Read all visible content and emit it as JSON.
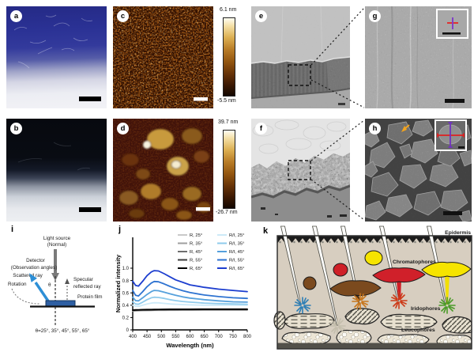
{
  "panel_labels": {
    "a": "a",
    "b": "b",
    "c": "c",
    "d": "d",
    "e": "e",
    "f": "f",
    "g": "g",
    "h": "h",
    "i": "i",
    "j": "j",
    "k": "k"
  },
  "colorbar_c": {
    "max_label": "6.1 nm",
    "min_label": "-5.5 nm"
  },
  "colorbar_d": {
    "max_label": "39.7 nm",
    "min_label": "-26.7 nm"
  },
  "diagram_i": {
    "light_source_line1": "Light source",
    "light_source_line2": "(Normal)",
    "detector_line1": "Detector",
    "detector_line2": "(Observation angles)",
    "scattered_ray": "Scattered ray",
    "rotation": "Rotation",
    "theta": "θ",
    "specular_line1": "Specular",
    "specular_line2": "reflected ray",
    "protein_film": "Protein film",
    "angles": "θ=25°, 35°, 45°, 55°, 65°"
  },
  "illustration_k": {
    "epidermis_label": "Epidermis",
    "chromatophores_label": "Chromatophores",
    "iridophores_label": "Iridophores",
    "leucophores_label": "Leucophores"
  },
  "colors": {
    "diagram_arrow_blue": "#2d8fd6",
    "protein_film_blue": "#2e5fa3",
    "afm_high": "#fffdf2",
    "afm_low": "#120700"
  },
  "chart_data": {
    "type": "line",
    "title": "",
    "xlabel": "Wavelength (nm)",
    "ylabel": "Normalized intensity",
    "xlim": [
      400,
      800
    ],
    "ylim": [
      0,
      1.5
    ],
    "xticks": [
      400,
      450,
      500,
      550,
      600,
      650,
      700,
      750,
      800
    ],
    "yticks": [
      0,
      0.2,
      0.4,
      0.6,
      0.8,
      1.0
    ],
    "legend_position": "top-inside",
    "legend_columns": 2,
    "x": [
      400,
      410,
      420,
      435,
      450,
      465,
      475,
      490,
      510,
      530,
      550,
      575,
      600,
      650,
      700,
      750,
      800
    ],
    "series": [
      {
        "name": "R, 25°",
        "color": "#c9c9c9",
        "values": [
          0.305,
          0.308,
          0.31,
          0.312,
          0.313,
          0.314,
          0.315,
          0.316,
          0.317,
          0.318,
          0.318,
          0.319,
          0.319,
          0.32,
          0.32,
          0.32,
          0.32
        ]
      },
      {
        "name": "R, 35°",
        "color": "#9f9f9f",
        "values": [
          0.309,
          0.312,
          0.314,
          0.316,
          0.317,
          0.318,
          0.319,
          0.32,
          0.321,
          0.322,
          0.322,
          0.323,
          0.323,
          0.324,
          0.324,
          0.324,
          0.324
        ]
      },
      {
        "name": "R, 45°",
        "color": "#6f6f6f",
        "values": [
          0.313,
          0.316,
          0.318,
          0.32,
          0.321,
          0.322,
          0.323,
          0.324,
          0.325,
          0.326,
          0.326,
          0.327,
          0.327,
          0.328,
          0.328,
          0.328,
          0.328
        ]
      },
      {
        "name": "R, 55°",
        "color": "#3d3d3d",
        "values": [
          0.317,
          0.32,
          0.322,
          0.324,
          0.325,
          0.326,
          0.327,
          0.328,
          0.329,
          0.33,
          0.33,
          0.331,
          0.331,
          0.332,
          0.332,
          0.332,
          0.332
        ]
      },
      {
        "name": "R, 65°",
        "color": "#000000",
        "values": [
          0.321,
          0.324,
          0.326,
          0.328,
          0.329,
          0.33,
          0.331,
          0.332,
          0.333,
          0.334,
          0.334,
          0.335,
          0.335,
          0.336,
          0.336,
          0.336,
          0.336
        ]
      },
      {
        "name": "R/I, 25°",
        "color": "#cdeaf8",
        "values": [
          0.4,
          0.385,
          0.38,
          0.4,
          0.42,
          0.435,
          0.44,
          0.438,
          0.43,
          0.42,
          0.415,
          0.41,
          0.405,
          0.4,
          0.4,
          0.4,
          0.4
        ]
      },
      {
        "name": "R/I, 35°",
        "color": "#8fcbec",
        "values": [
          0.455,
          0.42,
          0.415,
          0.45,
          0.49,
          0.52,
          0.53,
          0.525,
          0.51,
          0.49,
          0.475,
          0.46,
          0.45,
          0.435,
          0.425,
          0.42,
          0.415
        ]
      },
      {
        "name": "R/I, 45°",
        "color": "#55a0dc",
        "values": [
          0.53,
          0.475,
          0.47,
          0.52,
          0.575,
          0.62,
          0.64,
          0.635,
          0.61,
          0.585,
          0.56,
          0.535,
          0.515,
          0.49,
          0.47,
          0.455,
          0.45
        ]
      },
      {
        "name": "R/I, 55°",
        "color": "#2e73d1",
        "values": [
          0.64,
          0.56,
          0.55,
          0.62,
          0.7,
          0.76,
          0.785,
          0.78,
          0.745,
          0.705,
          0.67,
          0.635,
          0.605,
          0.565,
          0.54,
          0.52,
          0.51
        ]
      },
      {
        "name": "R/I, 65°",
        "color": "#1d3ecf",
        "values": [
          0.79,
          0.72,
          0.71,
          0.79,
          0.88,
          0.94,
          0.96,
          0.955,
          0.91,
          0.86,
          0.81,
          0.77,
          0.73,
          0.69,
          0.66,
          0.64,
          0.62
        ]
      }
    ]
  }
}
